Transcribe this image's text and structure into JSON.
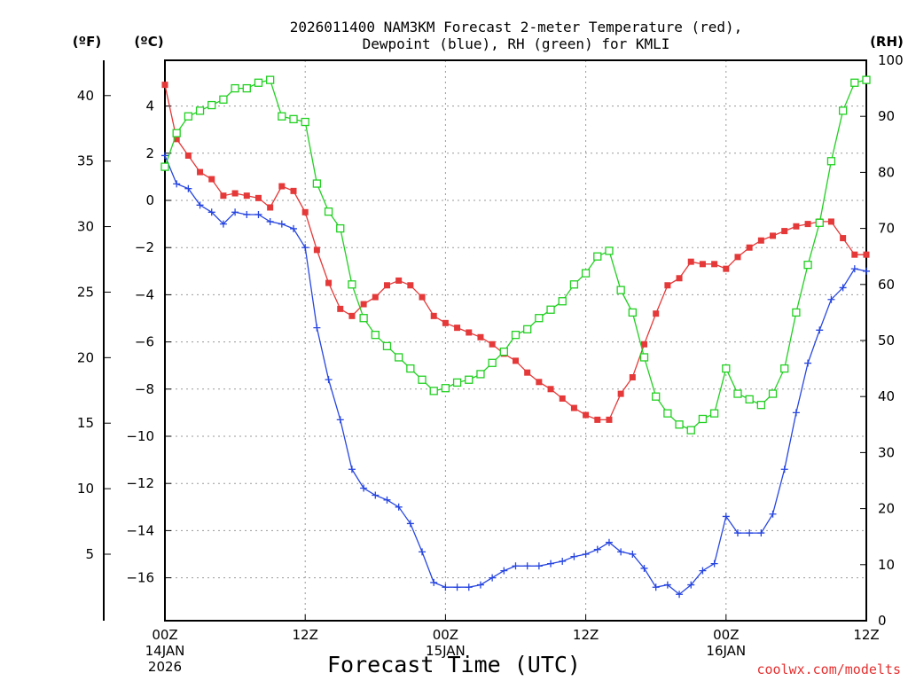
{
  "chart_data": {
    "type": "line",
    "title_line1": "2026011400 NAM3KM Forecast 2-meter Temperature (red),",
    "title_line2": "Dewpoint (blue), RH (green) for KMLI",
    "xlabel": "Forecast Time (UTC)",
    "credit": "coolwx.com/modelts",
    "units": {
      "fahrenheit": "(ºF)",
      "celsius": "(ºC)",
      "rh": "(RH)"
    },
    "x_range_hours": [
      0,
      60
    ],
    "celsius_range": [
      -18,
      5
    ],
    "rh_range": [
      0,
      100
    ],
    "x_ticks": [
      {
        "hour": 0,
        "lines": [
          "00Z",
          "14JAN",
          "2026"
        ]
      },
      {
        "hour": 12,
        "lines": [
          "12Z"
        ]
      },
      {
        "hour": 24,
        "lines": [
          "00Z",
          "15JAN"
        ]
      },
      {
        "hour": 36,
        "lines": [
          "12Z"
        ]
      },
      {
        "hour": 48,
        "lines": [
          "00Z",
          "16JAN"
        ]
      },
      {
        "hour": 60,
        "lines": [
          "12Z"
        ]
      }
    ],
    "celsius_ticks": [
      4,
      2,
      0,
      -2,
      -4,
      -6,
      -8,
      -10,
      -12,
      -14,
      -16
    ],
    "fahrenheit_ticks": [
      40,
      35,
      30,
      25,
      20,
      15,
      10,
      5
    ],
    "rh_ticks": [
      100,
      90,
      80,
      70,
      60,
      50,
      40,
      30,
      20,
      10,
      0
    ],
    "hours": [
      0,
      1,
      2,
      3,
      4,
      5,
      6,
      7,
      8,
      9,
      10,
      11,
      12,
      13,
      14,
      15,
      16,
      17,
      18,
      19,
      20,
      21,
      22,
      23,
      24,
      25,
      26,
      27,
      28,
      29,
      30,
      31,
      32,
      33,
      34,
      35,
      36,
      37,
      38,
      39,
      40,
      41,
      42,
      43,
      44,
      45,
      46,
      47,
      48,
      49,
      50,
      51,
      52,
      53,
      54,
      55,
      56,
      57,
      58,
      59,
      60
    ],
    "series": [
      {
        "name": "Temperature (ºC)",
        "color": "#e53838",
        "marker": "filled-square",
        "axis": "celsius",
        "values": [
          4.9,
          2.6,
          1.9,
          1.2,
          0.9,
          0.2,
          0.3,
          0.2,
          0.1,
          -0.3,
          0.6,
          0.4,
          -0.5,
          -2.1,
          -3.5,
          -4.6,
          -4.9,
          -4.4,
          -4.1,
          -3.6,
          -3.4,
          -3.6,
          -4.1,
          -4.9,
          -5.2,
          -5.4,
          -5.6,
          -5.8,
          -6.1,
          -6.5,
          -6.8,
          -7.3,
          -7.7,
          -8.0,
          -8.4,
          -8.8,
          -9.1,
          -9.3,
          -9.3,
          -8.2,
          -7.5,
          -6.1,
          -4.8,
          -3.6,
          -3.3,
          -2.6,
          -2.7,
          -2.7,
          -2.9,
          -2.4,
          -2.0,
          -1.7,
          -1.5,
          -1.3,
          -1.1,
          -1.0,
          -0.9,
          -0.9,
          -1.6,
          -2.3,
          -2.3
        ]
      },
      {
        "name": "Dewpoint (ºC)",
        "color": "#2746e0",
        "marker": "plus",
        "axis": "celsius",
        "values": [
          1.9,
          0.7,
          0.5,
          -0.2,
          -0.5,
          -1.0,
          -0.5,
          -0.6,
          -0.6,
          -0.9,
          -1.0,
          -1.2,
          -2.0,
          -5.4,
          -7.6,
          -9.3,
          -11.4,
          -12.2,
          -12.5,
          -12.7,
          -13.0,
          -13.7,
          -14.9,
          -16.2,
          -16.4,
          -16.4,
          -16.4,
          -16.3,
          -16.0,
          -15.7,
          -15.5,
          -15.5,
          -15.5,
          -15.4,
          -15.3,
          -15.1,
          -15.0,
          -14.8,
          -14.5,
          -14.9,
          -15.0,
          -15.6,
          -16.4,
          -16.3,
          -16.7,
          -16.3,
          -15.7,
          -15.4,
          -13.4,
          -14.1,
          -14.1,
          -14.1,
          -13.3,
          -11.4,
          -9.0,
          -6.9,
          -5.5,
          -4.2,
          -3.7,
          -2.9,
          -3.0
        ]
      },
      {
        "name": "RH (%)",
        "color": "#21d021",
        "marker": "open-square",
        "axis": "rh",
        "values": [
          81,
          87,
          90,
          91,
          92,
          93,
          95,
          95,
          96,
          96.5,
          90,
          89.5,
          89,
          78,
          73,
          70,
          60,
          54,
          51,
          49,
          47,
          45,
          43,
          41,
          41.5,
          42.5,
          43,
          44,
          46,
          48,
          51,
          52,
          54,
          55.5,
          57,
          60,
          62,
          65,
          66,
          59,
          55,
          47,
          40,
          37,
          35,
          34,
          36,
          37,
          45,
          40.5,
          39.5,
          38.5,
          40.5,
          45,
          55,
          63.5,
          71,
          82,
          91,
          96,
          96.5
        ]
      }
    ]
  }
}
